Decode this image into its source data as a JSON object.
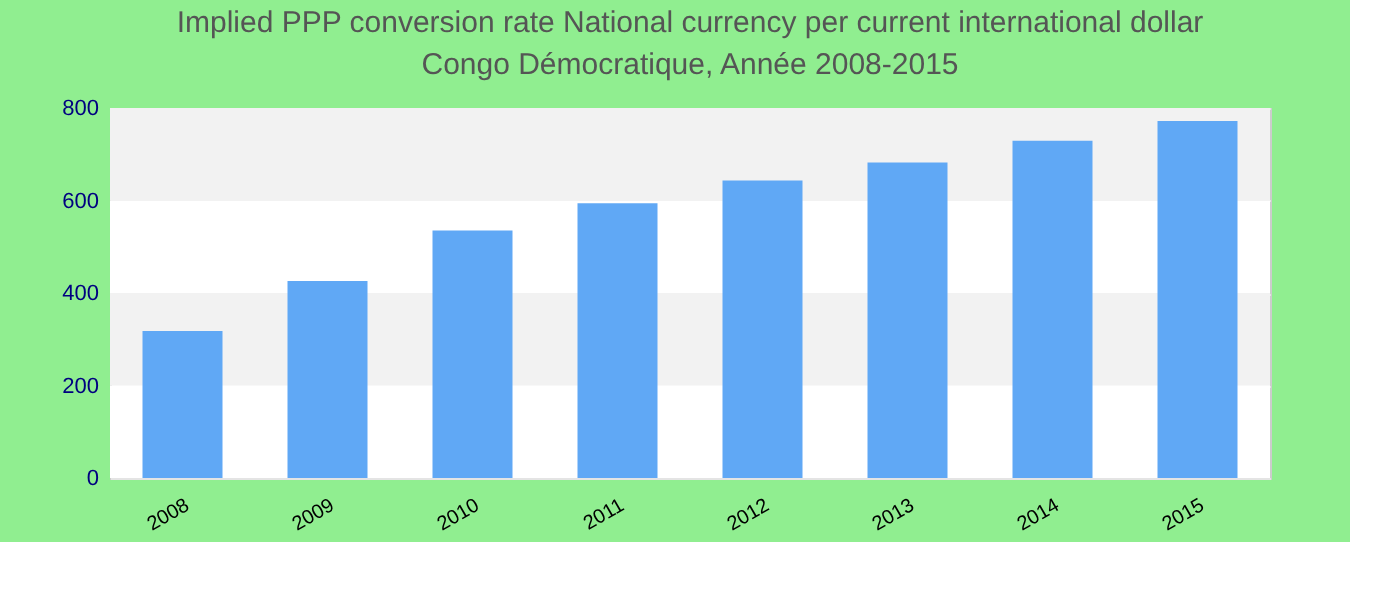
{
  "chart_data": {
    "type": "bar",
    "title": "Implied PPP conversion rate  National currency per current international dollar",
    "subtitle": "Congo Démocratique, Année 2008-2015",
    "categories": [
      "2008",
      "2009",
      "2010",
      "2011",
      "2012",
      "2013",
      "2014",
      "2015"
    ],
    "values": [
      318,
      426,
      535,
      594,
      643,
      682,
      729,
      772
    ],
    "color": "#60a8f5",
    "ylim": [
      0,
      800
    ],
    "yticks": [
      0,
      200,
      400,
      600,
      800
    ],
    "grid": "y"
  }
}
